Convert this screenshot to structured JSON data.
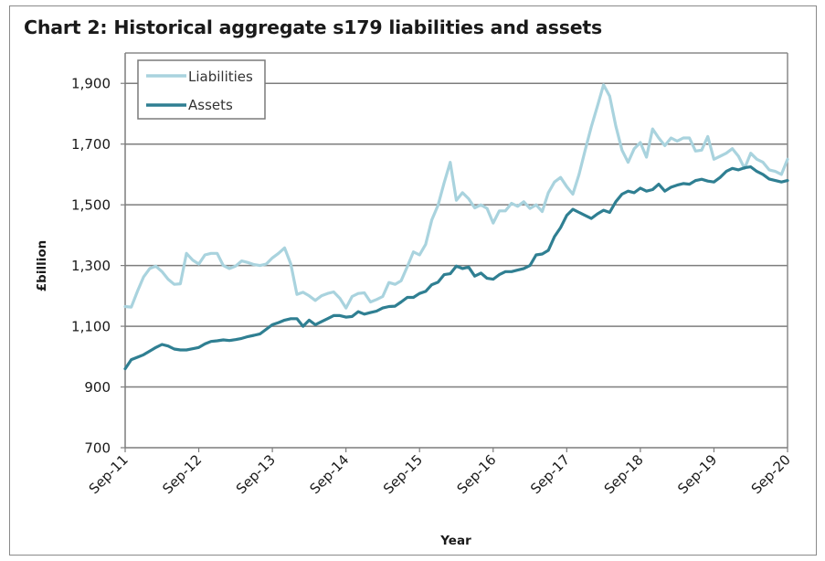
{
  "chart_data": {
    "type": "line",
    "title": "Chart 2: Historical aggregate s179 liabilities and assets",
    "xlabel": "Year",
    "ylabel": "£billion",
    "ylim": [
      700,
      2000
    ],
    "yticks": [
      700,
      900,
      1100,
      1300,
      1500,
      1700,
      1900
    ],
    "ytick_labels": [
      "700",
      "900",
      "1,100",
      "1,300",
      "1,500",
      "1,700",
      "1,900"
    ],
    "xtick_labels": [
      "Sep-11",
      "Sep-12",
      "Sep-13",
      "Sep-14",
      "Sep-15",
      "Sep-16",
      "Sep-17",
      "Sep-18",
      "Sep-19",
      "Sep-20"
    ],
    "x_frequency": "monthly",
    "x_start": "Sep-11",
    "x_end": "Sep-20",
    "grid": true,
    "legend_position": "top-left",
    "series": [
      {
        "name": "Liabilities",
        "color": "#a9d3de",
        "values": [
          1165,
          1163,
          1215,
          1262,
          1290,
          1298,
          1280,
          1255,
          1238,
          1240,
          1340,
          1318,
          1305,
          1335,
          1340,
          1340,
          1300,
          1290,
          1298,
          1315,
          1310,
          1303,
          1300,
          1305,
          1325,
          1340,
          1358,
          1305,
          1205,
          1212,
          1200,
          1185,
          1200,
          1208,
          1213,
          1192,
          1160,
          1198,
          1208,
          1210,
          1180,
          1188,
          1198,
          1244,
          1238,
          1250,
          1296,
          1345,
          1335,
          1370,
          1450,
          1498,
          1572,
          1640,
          1515,
          1540,
          1520,
          1490,
          1500,
          1488,
          1440,
          1480,
          1480,
          1505,
          1495,
          1510,
          1488,
          1500,
          1478,
          1540,
          1575,
          1590,
          1560,
          1535,
          1600,
          1680,
          1757,
          1825,
          1895,
          1858,
          1760,
          1680,
          1640,
          1685,
          1705,
          1657,
          1750,
          1720,
          1695,
          1720,
          1710,
          1720,
          1720,
          1677,
          1680,
          1725,
          1650,
          1660,
          1670,
          1685,
          1660,
          1620,
          1670,
          1650,
          1640,
          1615,
          1610,
          1600,
          1650
        ]
      },
      {
        "name": "Assets",
        "color": "#2f7f92",
        "values": [
          960,
          990,
          998,
          1006,
          1018,
          1030,
          1040,
          1035,
          1025,
          1022,
          1022,
          1026,
          1030,
          1042,
          1050,
          1052,
          1055,
          1053,
          1056,
          1060,
          1066,
          1070,
          1075,
          1090,
          1105,
          1112,
          1120,
          1125,
          1125,
          1100,
          1120,
          1105,
          1115,
          1125,
          1135,
          1135,
          1130,
          1132,
          1148,
          1140,
          1145,
          1150,
          1160,
          1165,
          1166,
          1180,
          1195,
          1195,
          1208,
          1215,
          1237,
          1245,
          1270,
          1273,
          1298,
          1290,
          1295,
          1265,
          1275,
          1258,
          1255,
          1270,
          1280,
          1280,
          1285,
          1290,
          1300,
          1335,
          1338,
          1350,
          1395,
          1425,
          1465,
          1485,
          1475,
          1465,
          1455,
          1470,
          1482,
          1475,
          1510,
          1535,
          1545,
          1540,
          1555,
          1545,
          1550,
          1568,
          1545,
          1558,
          1565,
          1570,
          1568,
          1580,
          1584,
          1578,
          1575,
          1590,
          1610,
          1620,
          1615,
          1622,
          1625,
          1610,
          1600,
          1585,
          1580,
          1575,
          1580
        ]
      }
    ]
  }
}
